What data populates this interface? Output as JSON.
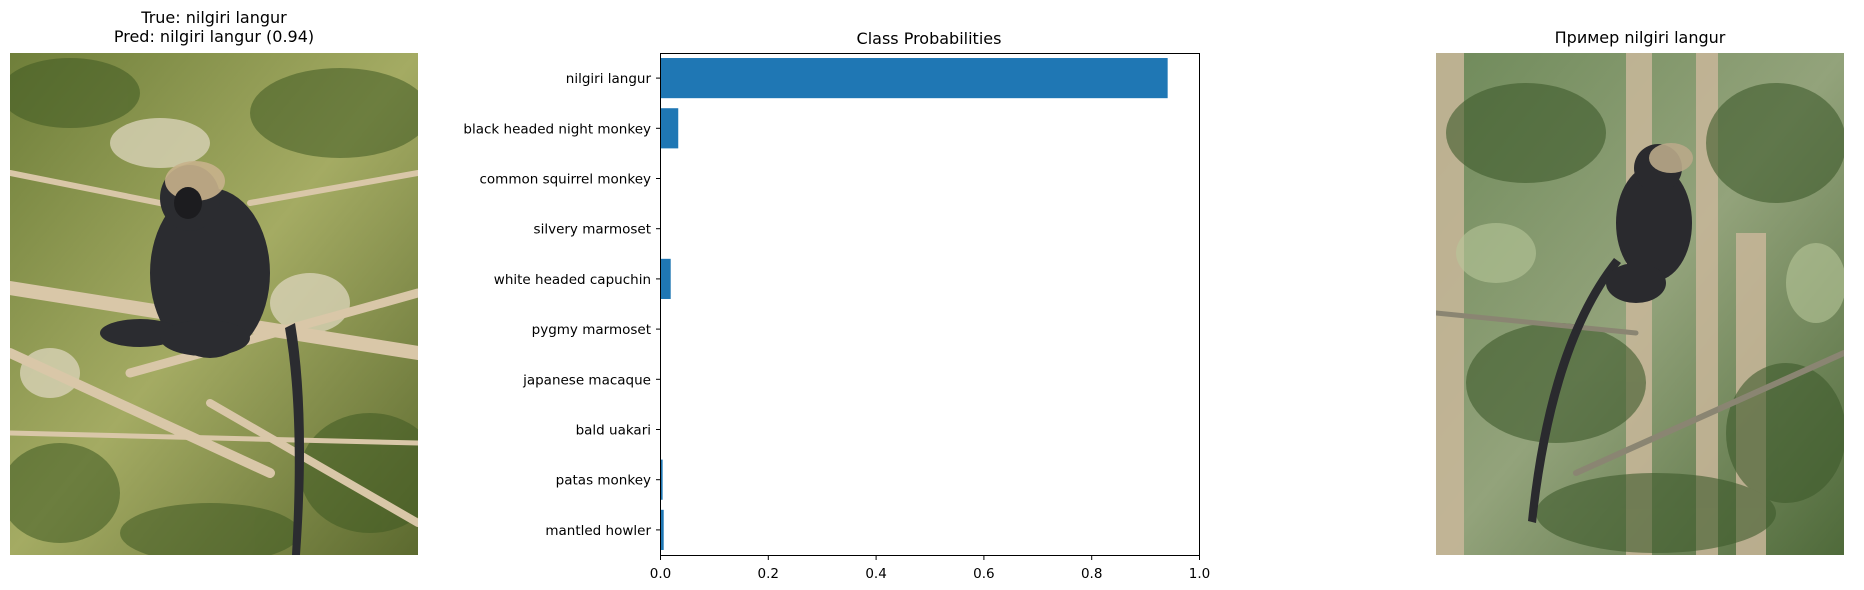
{
  "left_panel": {
    "title_line1": "True: nilgiri langur",
    "title_line2": "Pred: nilgiri langur (0.94)"
  },
  "right_panel": {
    "title": "Пример nilgiri langur"
  },
  "chart_data": {
    "type": "bar",
    "orientation": "horizontal",
    "title": "Class Probabilities",
    "categories": [
      "nilgiri langur",
      "black headed night monkey",
      "common squirrel monkey",
      "silvery marmoset",
      "white headed capuchin",
      "pygmy marmoset",
      "japanese macaque",
      "bald uakari",
      "patas monkey",
      "mantled howler"
    ],
    "values": [
      0.94,
      0.032,
      0.0,
      0.0,
      0.018,
      0.0,
      0.0,
      0.0,
      0.003,
      0.005
    ],
    "xlim": [
      0,
      1.0
    ],
    "xticks": [
      "0.0",
      "0.2",
      "0.4",
      "0.6",
      "0.8",
      "1.0"
    ],
    "bar_color": "#1f77b4",
    "grid": false,
    "xlabel": "",
    "ylabel": ""
  }
}
